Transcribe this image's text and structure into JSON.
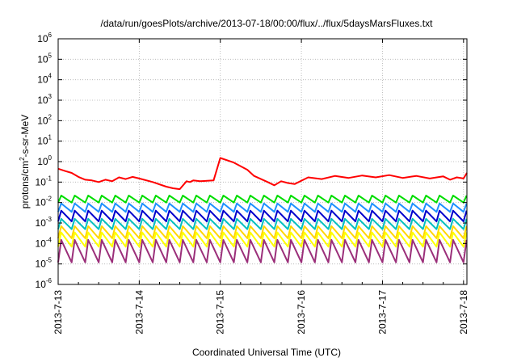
{
  "chart_data": {
    "type": "line",
    "title": "/data/run/goesPlots/archive/2013-07-18/00:00/flux/../flux/5daysMarsFluxes.txt",
    "xlabel": "Coordinated Universal Time (UTC)",
    "ylabel": {
      "base": "protons/cm",
      "sup": "2",
      "rest": "-s-sr-MeV"
    },
    "y_scale": "log",
    "ylim": [
      1e-06,
      1000000.0
    ],
    "y_ticks": [
      {
        "base": "10",
        "exp": "-6"
      },
      {
        "base": "10",
        "exp": "-5"
      },
      {
        "base": "10",
        "exp": "-4"
      },
      {
        "base": "10",
        "exp": "-3"
      },
      {
        "base": "10",
        "exp": "-2"
      },
      {
        "base": "10",
        "exp": "-1"
      },
      {
        "base": "10",
        "exp": "0"
      },
      {
        "base": "10",
        "exp": "1"
      },
      {
        "base": "10",
        "exp": "2"
      },
      {
        "base": "10",
        "exp": "3"
      },
      {
        "base": "10",
        "exp": "4"
      },
      {
        "base": "10",
        "exp": "5"
      },
      {
        "base": "10",
        "exp": "6"
      }
    ],
    "x_ticks": [
      "2013-7-13",
      "2013-7-14",
      "2013-7-15",
      "2013-7-16",
      "2013-7-17",
      "2013-7-18"
    ],
    "xlim": [
      "2013-07-13 00:00",
      "2013-07-18 01:00"
    ],
    "grid": true,
    "legend": "none",
    "series": [
      {
        "color": "#ff0000",
        "x": [
          "2013-07-13 00:00",
          "2013-07-13 02:00",
          "2013-07-13 04:00",
          "2013-07-13 06:00",
          "2013-07-13 08:00",
          "2013-07-13 10:00",
          "2013-07-13 12:00",
          "2013-07-13 14:00",
          "2013-07-13 16:00",
          "2013-07-13 18:00",
          "2013-07-13 20:00",
          "2013-07-13 22:00",
          "2013-07-14 00:00",
          "2013-07-14 04:00",
          "2013-07-14 08:00",
          "2013-07-14 10:00",
          "2013-07-14 12:00",
          "2013-07-14 14:00",
          "2013-07-14 15:00",
          "2013-07-14 16:00",
          "2013-07-14 18:00",
          "2013-07-14 22:00",
          "2013-07-15 00:00",
          "2013-07-15 04:00",
          "2013-07-15 08:00",
          "2013-07-15 10:00",
          "2013-07-15 14:00",
          "2013-07-15 16:00",
          "2013-07-15 18:00",
          "2013-07-15 20:00",
          "2013-07-15 22:00",
          "2013-07-16 02:00",
          "2013-07-16 06:00",
          "2013-07-16 10:00",
          "2013-07-16 14:00",
          "2013-07-16 18:00",
          "2013-07-16 22:00",
          "2013-07-17 02:00",
          "2013-07-17 06:00",
          "2013-07-17 10:00",
          "2013-07-17 14:00",
          "2013-07-17 18:00",
          "2013-07-17 20:00",
          "2013-07-17 22:00",
          "2013-07-18 00:00",
          "2013-07-18 01:00"
        ],
        "y": [
          0.45,
          0.35,
          0.28,
          0.18,
          0.13,
          0.12,
          0.1,
          0.13,
          0.11,
          0.17,
          0.14,
          0.18,
          0.15,
          0.1,
          0.06,
          0.05,
          0.045,
          0.11,
          0.1,
          0.12,
          0.11,
          0.12,
          1.5,
          0.9,
          0.4,
          0.2,
          0.1,
          0.07,
          0.11,
          0.09,
          0.08,
          0.17,
          0.14,
          0.2,
          0.16,
          0.21,
          0.17,
          0.22,
          0.16,
          0.2,
          0.15,
          0.19,
          0.13,
          0.17,
          0.15,
          0.28
        ]
      },
      {
        "color": "#00dd00",
        "baseline": 0.022,
        "dip": 0.01
      },
      {
        "color": "#1e90ff",
        "baseline": 0.009,
        "dip": 0.0035
      },
      {
        "color": "#0000cc",
        "baseline": 0.004,
        "dip": 0.0012
      },
      {
        "color": "#00bfbf",
        "baseline": 0.0016,
        "dip": 0.0005
      },
      {
        "color": "#ffd700",
        "baseline": 0.0007,
        "dip": 0.00018
      },
      {
        "color": "#ffff00",
        "baseline": 0.00035,
        "dip": 7e-05
      },
      {
        "color": "#9b2f7a",
        "baseline": 0.00015,
        "dip": 1.2e-05
      }
    ]
  }
}
